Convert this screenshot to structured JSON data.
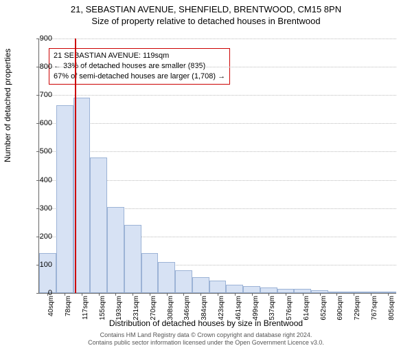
{
  "title_line1": "21, SEBASTIAN AVENUE, SHENFIELD, BRENTWOOD, CM15 8PN",
  "title_line2": "Size of property relative to detached houses in Brentwood",
  "ylabel": "Number of detached properties",
  "xlabel": "Distribution of detached houses by size in Brentwood",
  "chart": {
    "type": "histogram",
    "bar_fill": "#d7e2f4",
    "bar_stroke": "#9cb3d6",
    "grid_color": "#bbbbbb",
    "marker_color": "#cc0000",
    "background": "#ffffff",
    "ylim": [
      0,
      900
    ],
    "ytick_step": 100,
    "xticks": [
      "40sqm",
      "78sqm",
      "117sqm",
      "155sqm",
      "193sqm",
      "231sqm",
      "270sqm",
      "308sqm",
      "346sqm",
      "384sqm",
      "423sqm",
      "461sqm",
      "499sqm",
      "537sqm",
      "576sqm",
      "614sqm",
      "652sqm",
      "690sqm",
      "729sqm",
      "767sqm",
      "805sqm"
    ],
    "values": [
      140,
      665,
      690,
      480,
      305,
      240,
      140,
      110,
      80,
      55,
      45,
      30,
      25,
      20,
      15,
      15,
      10,
      5,
      5,
      3,
      3
    ],
    "marker_bin_index": 2,
    "marker_value_sqm": 119
  },
  "info_box": {
    "line1": "21 SEBASTIAN AVENUE: 119sqm",
    "line2": "← 33% of detached houses are smaller (835)",
    "line3": "67% of semi-detached houses are larger (1,708) →",
    "border_color": "#cc0000"
  },
  "footer": {
    "line1": "Contains HM Land Registry data © Crown copyright and database right 2024.",
    "line2": "Contains public sector information licensed under the Open Government Licence v3.0."
  }
}
